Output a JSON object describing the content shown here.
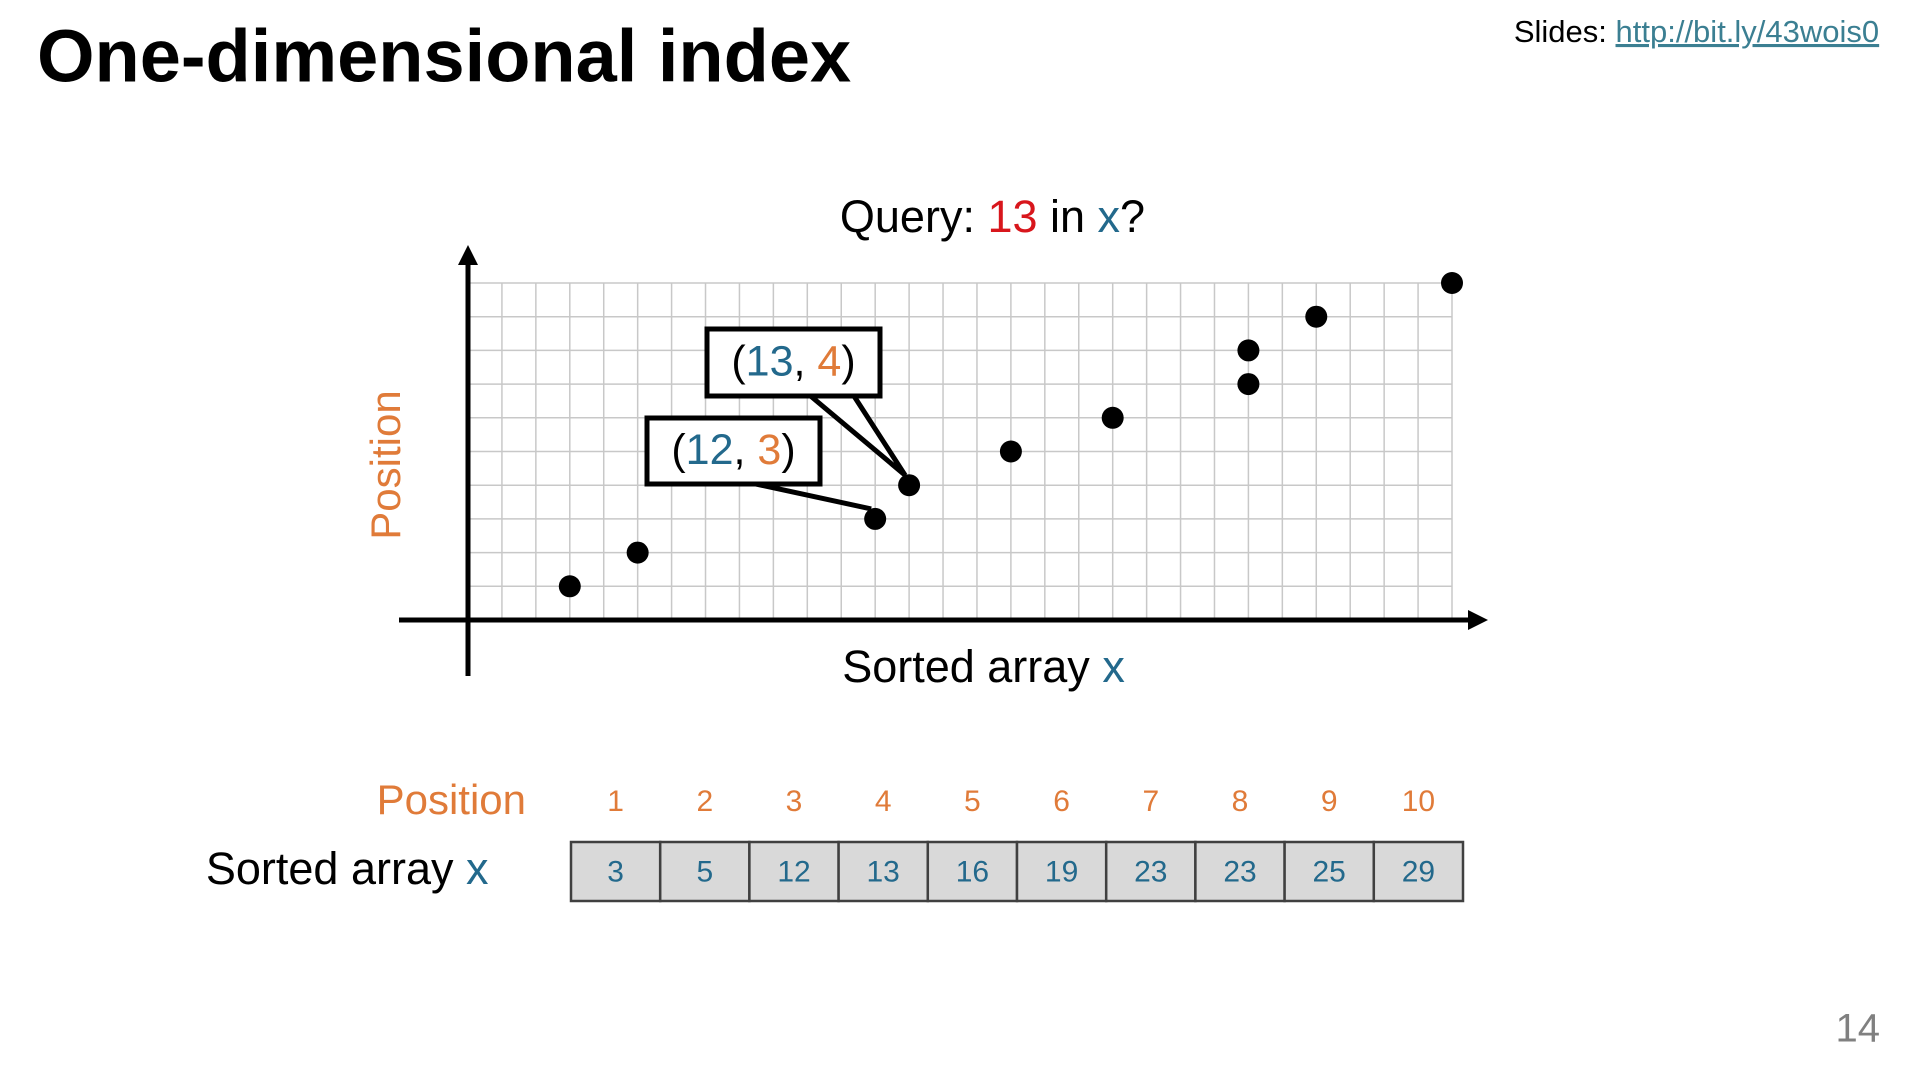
{
  "header": {
    "title": "One-dimensional index",
    "slides_label": "Slides: ",
    "slides_url": "http://bit.ly/43wois0",
    "page_number": "14"
  },
  "chart_data": {
    "type": "scatter",
    "title": [
      "Query: ",
      "13",
      " in ",
      "x",
      "?"
    ],
    "x_label": [
      "Sorted array ",
      "x"
    ],
    "y_label": "Position",
    "x": [
      3,
      5,
      12,
      13,
      16,
      19,
      23,
      23,
      25,
      29
    ],
    "y": [
      1,
      2,
      3,
      4,
      5,
      6,
      7,
      8,
      9,
      10
    ],
    "color": "#000000",
    "xlim": [
      0,
      29
    ],
    "ylim": [
      0,
      10
    ],
    "grid": true,
    "annotations": [
      {
        "text": [
          "(",
          "13",
          ", ",
          "4",
          ")"
        ],
        "x": 13,
        "y": 4
      },
      {
        "text": [
          "(",
          "12",
          ", ",
          "3",
          ")"
        ],
        "x": 12,
        "y": 3
      }
    ]
  }
}
